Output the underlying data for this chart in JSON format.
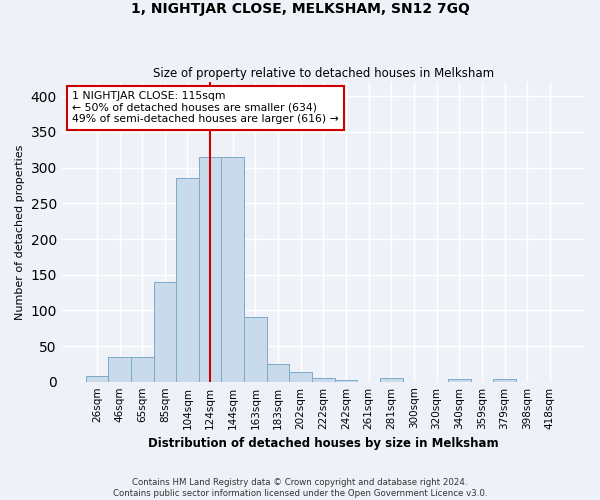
{
  "title": "1, NIGHTJAR CLOSE, MELKSHAM, SN12 7GQ",
  "subtitle": "Size of property relative to detached houses in Melksham",
  "xlabel": "Distribution of detached houses by size in Melksham",
  "ylabel": "Number of detached properties",
  "bar_labels": [
    "26sqm",
    "46sqm",
    "65sqm",
    "85sqm",
    "104sqm",
    "124sqm",
    "144sqm",
    "163sqm",
    "183sqm",
    "202sqm",
    "222sqm",
    "242sqm",
    "261sqm",
    "281sqm",
    "300sqm",
    "320sqm",
    "340sqm",
    "359sqm",
    "379sqm",
    "398sqm",
    "418sqm"
  ],
  "bar_values": [
    8,
    35,
    35,
    140,
    285,
    315,
    315,
    90,
    25,
    13,
    5,
    2,
    0,
    5,
    0,
    0,
    4,
    0,
    4,
    0,
    0
  ],
  "bar_color": "#c9daea",
  "bar_edge_color": "#7aaac8",
  "property_line_x": 5.0,
  "property_line_color": "#cc0000",
  "annotation_text": "1 NIGHTJAR CLOSE: 115sqm\n← 50% of detached houses are smaller (634)\n49% of semi-detached houses are larger (616) →",
  "annotation_box_color": "#ffffff",
  "annotation_box_edge": "#cc0000",
  "ylim": [
    0,
    420
  ],
  "yticks": [
    0,
    50,
    100,
    150,
    200,
    250,
    300,
    350,
    400
  ],
  "footer": "Contains HM Land Registry data © Crown copyright and database right 2024.\nContains public sector information licensed under the Open Government Licence v3.0.",
  "bg_color": "#eef2f8",
  "plot_bg_color": "#eef2f8",
  "grid_color": "#ffffff"
}
